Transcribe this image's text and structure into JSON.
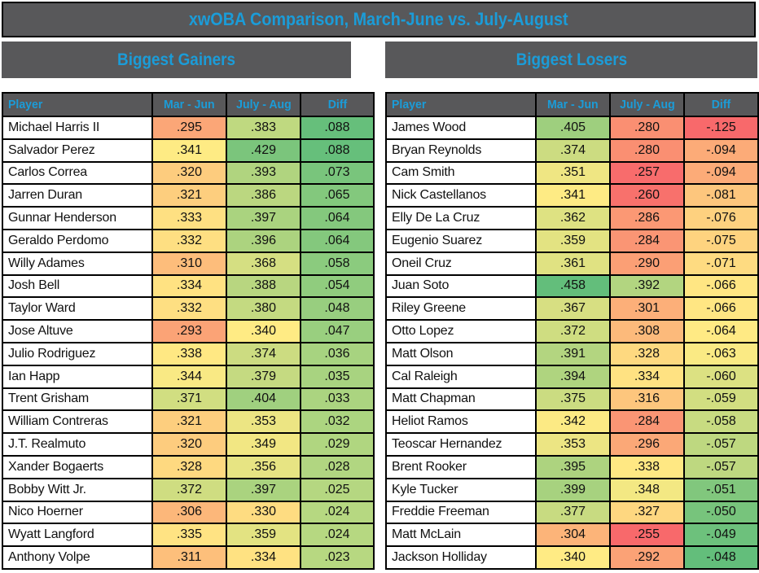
{
  "title": "xwOBA Comparison, March-June vs. July-August",
  "columns": [
    "Player",
    "Mar - Jun",
    "July - Aug",
    "Diff"
  ],
  "colors": {
    "bar_bg": "#58585A",
    "accent": "#1B9CD8",
    "border": "#000000",
    "scale_red": "#F8696B",
    "scale_yellow": "#FFEB84",
    "scale_green": "#63BE7B"
  },
  "scales": {
    "woba": [
      [
        0.255,
        "#F8696B"
      ],
      [
        0.34,
        "#FFEB84"
      ],
      [
        0.445,
        "#63BE7B"
      ]
    ],
    "gainers_diff": [
      [
        0.023,
        "#B7D881"
      ],
      [
        0.088,
        "#66BF7B"
      ]
    ],
    "losers_diff": [
      [
        -0.125,
        "#F8696B"
      ],
      [
        -0.0635,
        "#FFEB84"
      ],
      [
        -0.048,
        "#63BE7B"
      ]
    ]
  },
  "sections": [
    {
      "id": "gainers",
      "title": "Biggest Gainers",
      "diff_scale": "gainers_diff",
      "rows": [
        {
          "player": "Michael Harris II",
          "mar_jun": ".295",
          "july_aug": ".383",
          "diff": ".088"
        },
        {
          "player": "Salvador Perez",
          "mar_jun": ".341",
          "july_aug": ".429",
          "diff": ".088"
        },
        {
          "player": "Carlos Correa",
          "mar_jun": ".320",
          "july_aug": ".393",
          "diff": ".073"
        },
        {
          "player": "Jarren Duran",
          "mar_jun": ".321",
          "july_aug": ".386",
          "diff": ".065"
        },
        {
          "player": "Gunnar Henderson",
          "mar_jun": ".333",
          "july_aug": ".397",
          "diff": ".064"
        },
        {
          "player": "Geraldo Perdomo",
          "mar_jun": ".332",
          "july_aug": ".396",
          "diff": ".064"
        },
        {
          "player": "Willy Adames",
          "mar_jun": ".310",
          "july_aug": ".368",
          "diff": ".058"
        },
        {
          "player": "Josh Bell",
          "mar_jun": ".334",
          "july_aug": ".388",
          "diff": ".054"
        },
        {
          "player": "Taylor Ward",
          "mar_jun": ".332",
          "july_aug": ".380",
          "diff": ".048"
        },
        {
          "player": "Jose Altuve",
          "mar_jun": ".293",
          "july_aug": ".340",
          "diff": ".047"
        },
        {
          "player": "Julio Rodriguez",
          "mar_jun": ".338",
          "july_aug": ".374",
          "diff": ".036"
        },
        {
          "player": "Ian Happ",
          "mar_jun": ".344",
          "july_aug": ".379",
          "diff": ".035"
        },
        {
          "player": "Trent Grisham",
          "mar_jun": ".371",
          "july_aug": ".404",
          "diff": ".033"
        },
        {
          "player": "William Contreras",
          "mar_jun": ".321",
          "july_aug": ".353",
          "diff": ".032"
        },
        {
          "player": "J.T. Realmuto",
          "mar_jun": ".320",
          "july_aug": ".349",
          "diff": ".029"
        },
        {
          "player": "Xander Bogaerts",
          "mar_jun": ".328",
          "july_aug": ".356",
          "diff": ".028"
        },
        {
          "player": "Bobby Witt Jr.",
          "mar_jun": ".372",
          "july_aug": ".397",
          "diff": ".025"
        },
        {
          "player": "Nico Hoerner",
          "mar_jun": ".306",
          "july_aug": ".330",
          "diff": ".024"
        },
        {
          "player": "Wyatt Langford",
          "mar_jun": ".335",
          "july_aug": ".359",
          "diff": ".024"
        },
        {
          "player": "Anthony Volpe",
          "mar_jun": ".311",
          "july_aug": ".334",
          "diff": ".023"
        }
      ]
    },
    {
      "id": "losers",
      "title": "Biggest Losers",
      "diff_scale": "losers_diff",
      "rows": [
        {
          "player": "James Wood",
          "mar_jun": ".405",
          "july_aug": ".280",
          "diff": "-.125"
        },
        {
          "player": "Bryan Reynolds",
          "mar_jun": ".374",
          "july_aug": ".280",
          "diff": "-.094"
        },
        {
          "player": "Cam Smith",
          "mar_jun": ".351",
          "july_aug": ".257",
          "diff": "-.094"
        },
        {
          "player": "Nick Castellanos",
          "mar_jun": ".341",
          "july_aug": ".260",
          "diff": "-.081"
        },
        {
          "player": "Elly De La Cruz",
          "mar_jun": ".362",
          "july_aug": ".286",
          "diff": "-.076"
        },
        {
          "player": "Eugenio Suarez",
          "mar_jun": ".359",
          "july_aug": ".284",
          "diff": "-.075"
        },
        {
          "player": "Oneil Cruz",
          "mar_jun": ".361",
          "july_aug": ".290",
          "diff": "-.071"
        },
        {
          "player": "Juan Soto",
          "mar_jun": ".458",
          "july_aug": ".392",
          "diff": "-.066"
        },
        {
          "player": "Riley Greene",
          "mar_jun": ".367",
          "july_aug": ".301",
          "diff": "-.066"
        },
        {
          "player": "Otto Lopez",
          "mar_jun": ".372",
          "july_aug": ".308",
          "diff": "-.064"
        },
        {
          "player": "Matt Olson",
          "mar_jun": ".391",
          "july_aug": ".328",
          "diff": "-.063"
        },
        {
          "player": "Cal Raleigh",
          "mar_jun": ".394",
          "july_aug": ".334",
          "diff": "-.060"
        },
        {
          "player": "Matt Chapman",
          "mar_jun": ".375",
          "july_aug": ".316",
          "diff": "-.059"
        },
        {
          "player": "Heliot Ramos",
          "mar_jun": ".342",
          "july_aug": ".284",
          "diff": "-.058"
        },
        {
          "player": "Teoscar Hernandez",
          "mar_jun": ".353",
          "july_aug": ".296",
          "diff": "-.057"
        },
        {
          "player": "Brent Rooker",
          "mar_jun": ".395",
          "july_aug": ".338",
          "diff": "-.057"
        },
        {
          "player": "Kyle Tucker",
          "mar_jun": ".399",
          "july_aug": ".348",
          "diff": "-.051"
        },
        {
          "player": "Freddie Freeman",
          "mar_jun": ".377",
          "july_aug": ".327",
          "diff": "-.050"
        },
        {
          "player": "Matt McLain",
          "mar_jun": ".304",
          "july_aug": ".255",
          "diff": "-.049"
        },
        {
          "player": "Jackson Holliday",
          "mar_jun": ".340",
          "july_aug": ".292",
          "diff": "-.048"
        }
      ]
    }
  ]
}
